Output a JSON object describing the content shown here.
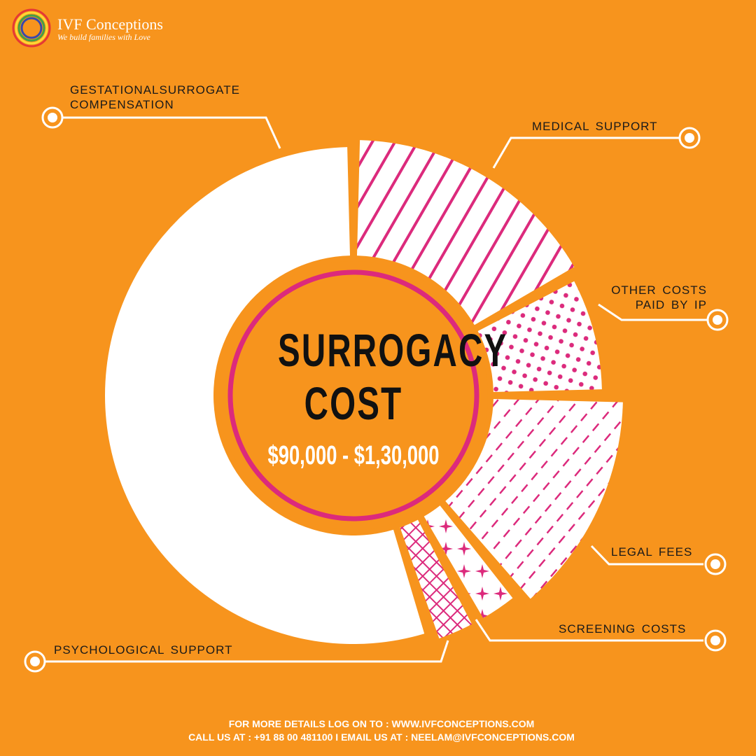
{
  "brand": {
    "name": "IVF Conceptions",
    "tagline": "We build families with Love"
  },
  "chart_data": {
    "type": "donut",
    "title": "SURROGACY COST",
    "subtitle": "$90,000 - $1,30,000",
    "categories": [
      "MEDICAL SUPPORT",
      "OTHER COSTS PAID BY IP",
      "LEGAL FEES",
      "SCREENING COSTS",
      "PSYCHOLOGICAL SUPPORT",
      "GESTATIONALSURROGATE COMPENSATION"
    ],
    "values": [
      17,
      8,
      14,
      3,
      3,
      55
    ],
    "fill_color": "#ffffff",
    "accent_color": "#dc2a7c",
    "background_color": "#f7941d"
  },
  "footer": {
    "line1": "FOR MORE DETAILS LOG ON TO : WWW.IVFCONCEPTIONS.COM",
    "line2": "CALL US AT : +91 88 00 481100   I   EMAIL US AT : NEELAM@IVFCONCEPTIONS.COM"
  }
}
